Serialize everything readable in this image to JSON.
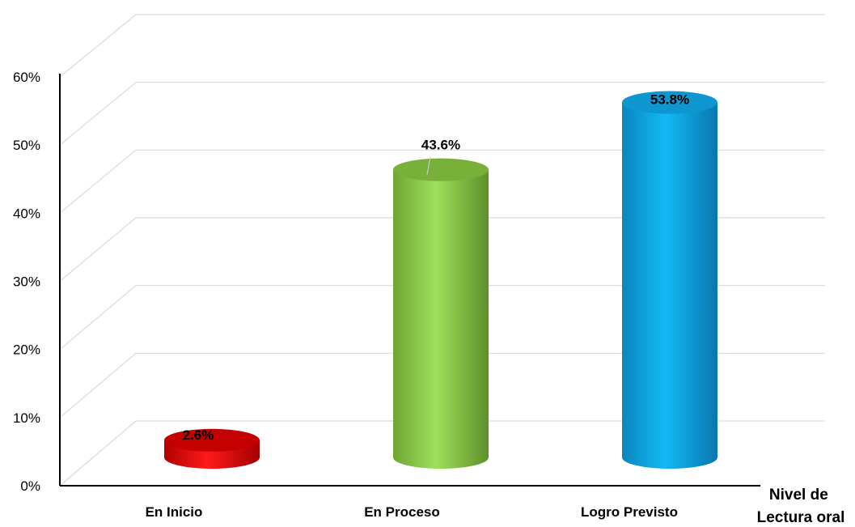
{
  "chart_data": {
    "type": "bar",
    "style": "3d-cylinder",
    "categories": [
      "En Inicio",
      "En Proceso",
      "Logro Previsto"
    ],
    "values": [
      2.6,
      43.6,
      53.8
    ],
    "value_labels": [
      "2.6%",
      "43.6%",
      "53.8%"
    ],
    "colors": [
      "#e00000",
      "#8ed24a",
      "#12a7e2"
    ],
    "y_ticks": [
      "0%",
      "10%",
      "20%",
      "30%",
      "40%",
      "50%",
      "60%"
    ],
    "ylim": [
      0,
      60
    ],
    "xlabel_lines": [
      "Nivel de",
      "Lectura oral"
    ],
    "grid": true,
    "legend": "none"
  }
}
